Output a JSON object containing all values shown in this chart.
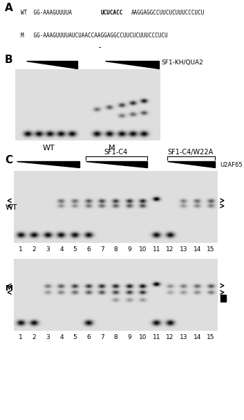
{
  "figsize": [
    3.53,
    6.07
  ],
  "dpi": 100,
  "bg_color": "#ffffff",
  "panel_A": {
    "label": "A",
    "wt_prefix": "WT  GG-AAAGUUUUA",
    "wt_bold": "UCUCACC",
    "wt_suffix": "AAGGAGGCCUUCUCUUUCCCUCU",
    "m_line": "M   GG-AAAGUUUUAUCUAACCAAGGAGGCCUUCUCUUUCCCUCU"
  },
  "panel_B": {
    "label": "B",
    "sf1_label": "SF1-KH/QUA2",
    "wt_label": "WT",
    "m_label": "M"
  },
  "panel_C": {
    "label": "C",
    "sf1c4_label": "SF1-C4",
    "sf1c4w22a_label": "SF1-C4/W22A",
    "u2af65_label": "U2AF65",
    "wt_label": "WT",
    "m_label": "M",
    "lane_numbers": [
      "1",
      "2",
      "3",
      "4",
      "5",
      "6",
      "7",
      "8",
      "9",
      "10",
      "11",
      "12",
      "13",
      "14",
      "15"
    ]
  }
}
